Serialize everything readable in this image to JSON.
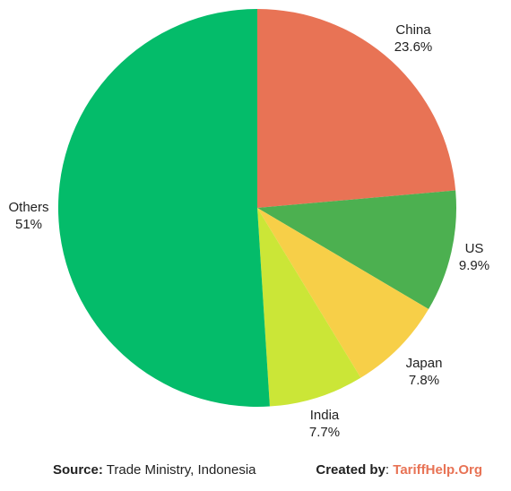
{
  "chart_data": {
    "type": "pie",
    "title": "",
    "slices": [
      {
        "label": "China",
        "value_label": "23.6%",
        "value": 23.6,
        "color": "#e87355"
      },
      {
        "label": "US",
        "value_label": "9.9%",
        "value": 9.9,
        "color": "#4cb050"
      },
      {
        "label": "Japan",
        "value_label": "7.8%",
        "value": 7.8,
        "color": "#f7cf48"
      },
      {
        "label": "India",
        "value_label": "7.7%",
        "value": 7.7,
        "color": "#cbe637"
      },
      {
        "label": "Others",
        "value_label": "51%",
        "value": 51,
        "color": "#04bc6a"
      }
    ],
    "start_angle_deg": 0,
    "direction": "clockwise"
  },
  "footer": {
    "source_label": "Source:",
    "source_text": " Trade Ministry, Indonesia",
    "created_label": "Created by",
    "created_sep": ": ",
    "brand": "TariffHelp.Org",
    "brand_color": "#e87355"
  }
}
